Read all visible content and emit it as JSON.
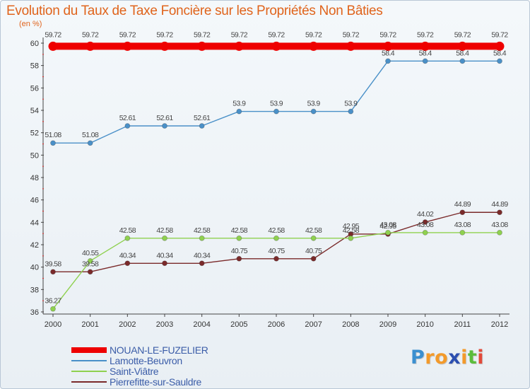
{
  "chart_data": {
    "type": "line",
    "title": "Evolution du Taux de Taxe Foncière sur les Propriétés Non Bâties",
    "ylabel": "(en %)",
    "xlabel": "",
    "ylim": [
      36,
      60
    ],
    "yticks": [
      "36",
      "38",
      "40",
      "42",
      "44",
      "46",
      "48",
      "50",
      "52",
      "54",
      "56",
      "58",
      "60"
    ],
    "categories": [
      "2000",
      "2001",
      "2002",
      "2003",
      "2004",
      "2005",
      "2006",
      "2007",
      "2008",
      "2009",
      "2010",
      "2011",
      "2012"
    ],
    "grid": false,
    "legend_position": "bottom-left",
    "series": [
      {
        "name": "NOUAN-LE-FUZELIER",
        "color": "#ee0000",
        "values": [
          59.72,
          59.72,
          59.72,
          59.72,
          59.72,
          59.72,
          59.72,
          59.72,
          59.72,
          59.72,
          59.72,
          59.72,
          59.72
        ],
        "labels": [
          "59.72",
          "59.72",
          "59.72",
          "59.72",
          "59.72",
          "59.72",
          "59.72",
          "59.72",
          "59.72",
          "59.72",
          "59.72",
          "59.72",
          "59.72"
        ]
      },
      {
        "name": "Lamotte-Beuvron",
        "color": "#4a90c8",
        "values": [
          51.08,
          51.08,
          52.61,
          52.61,
          52.61,
          53.9,
          53.9,
          53.9,
          53.9,
          58.4,
          58.4,
          58.4,
          58.4
        ],
        "labels": [
          "51.08",
          "51.08",
          "52.61",
          "52.61",
          "52.61",
          "53.9",
          "53.9",
          "53.9",
          "53.9",
          "58.4",
          "58.4",
          "58.4",
          "58.4"
        ]
      },
      {
        "name": "Saint-Viâtre",
        "color": "#8fd14f",
        "values": [
          36.27,
          40.55,
          42.58,
          42.58,
          42.58,
          42.58,
          42.58,
          42.58,
          42.58,
          43.08,
          43.08,
          43.08,
          43.08
        ],
        "labels": [
          "36.27",
          "40.55",
          "42.58",
          "42.58",
          "42.58",
          "42.58",
          "42.58",
          "42.58",
          "42.58",
          "43.08",
          "43.08",
          "43.08",
          "43.08"
        ]
      },
      {
        "name": "Pierrefitte-sur-Sauldre",
        "color": "#7a2a2a",
        "values": [
          39.58,
          39.58,
          40.34,
          40.34,
          40.34,
          40.75,
          40.75,
          40.75,
          42.95,
          42.95,
          44.02,
          44.89,
          44.89
        ],
        "labels": [
          "39.58",
          "39.58",
          "40.34",
          "40.34",
          "40.34",
          "40.75",
          "40.75",
          "40.75",
          "42.95",
          "42.95",
          "44.02",
          "44.89",
          "44.89"
        ]
      }
    ]
  },
  "logo": {
    "letters": [
      "P",
      "r",
      "o",
      "x",
      "i",
      "t",
      "i"
    ],
    "colors": [
      "#3a8fd0",
      "#f39a2a",
      "#f39a2a",
      "#2c4fb0",
      "#f39a2a",
      "#5bbd3c",
      "#e24a3a"
    ]
  }
}
